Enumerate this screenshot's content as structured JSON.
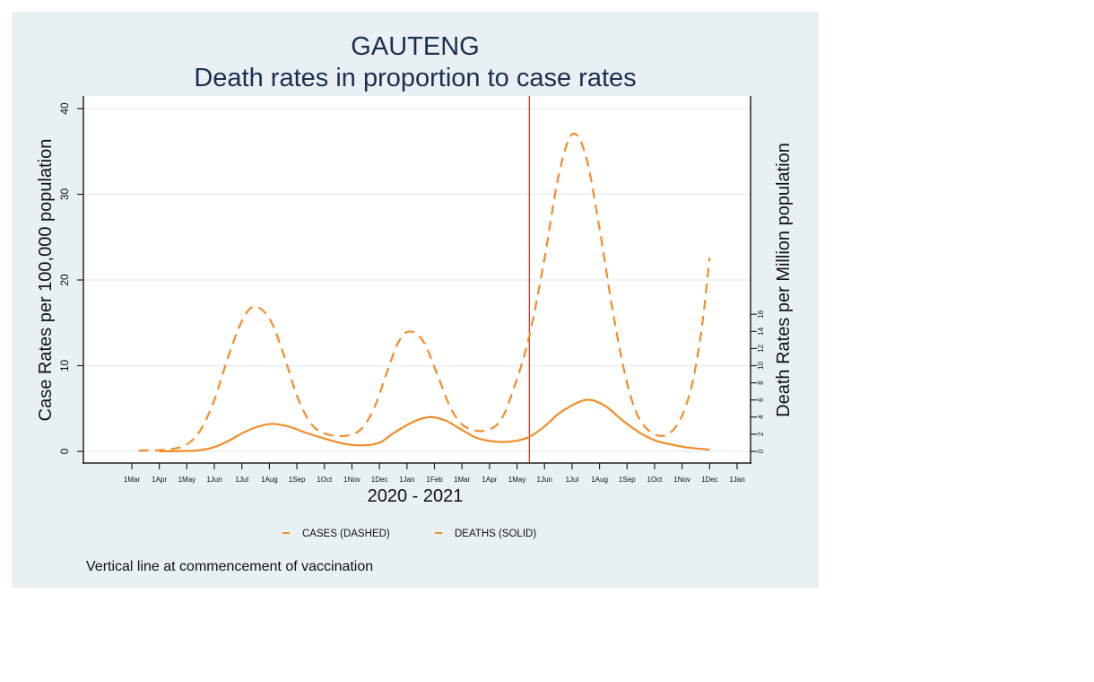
{
  "chart_data": {
    "type": "line",
    "title": "GAUTENG",
    "subtitle": "Death rates in proportion to case rates",
    "xlabel": "2020 - 2021",
    "ylabel": "Case Rates per 100,000 population",
    "ylabel_right": "Death Rates per Million population",
    "x_unit": "months since 1 Mar 2020",
    "xlim": [
      0,
      22
    ],
    "x_ticks": [
      {
        "x": 0,
        "label": "1Mar"
      },
      {
        "x": 1,
        "label": "1Apr"
      },
      {
        "x": 2,
        "label": "1May"
      },
      {
        "x": 3,
        "label": "1Jun"
      },
      {
        "x": 4,
        "label": "1Jul"
      },
      {
        "x": 5,
        "label": "1Aug"
      },
      {
        "x": 6,
        "label": "1Sep"
      },
      {
        "x": 7,
        "label": "1Oct"
      },
      {
        "x": 8,
        "label": "1Nov"
      },
      {
        "x": 9,
        "label": "1Dec"
      },
      {
        "x": 10,
        "label": "1Jan"
      },
      {
        "x": 11,
        "label": "1Feb"
      },
      {
        "x": 12,
        "label": "1Mar"
      },
      {
        "x": 13,
        "label": "1Apr"
      },
      {
        "x": 14,
        "label": "1May"
      },
      {
        "x": 15,
        "label": "1Jun"
      },
      {
        "x": 16,
        "label": "1Jul"
      },
      {
        "x": 17,
        "label": "1Aug"
      },
      {
        "x": 18,
        "label": "1Sep"
      },
      {
        "x": 19,
        "label": "1Oct"
      },
      {
        "x": 20,
        "label": "1Nov"
      },
      {
        "x": 21,
        "label": "1Dec"
      },
      {
        "x": 22,
        "label": "1Jan"
      }
    ],
    "ylim": [
      0,
      40
    ],
    "y_ticks": [
      0,
      10,
      20,
      30,
      40
    ],
    "ylim_right": [
      0,
      40
    ],
    "y_ticks_right": [
      0,
      2,
      4,
      6,
      8,
      10,
      12,
      14,
      16
    ],
    "grid": true,
    "vline": {
      "x": 14.45,
      "color": "#e8332a",
      "label": "commencement of vaccination"
    },
    "series": [
      {
        "name": "CASES (DASHED)",
        "axis": "left",
        "style": "dashed",
        "color": "#f28c28",
        "points": [
          [
            0.25,
            0.1
          ],
          [
            1.0,
            0.15
          ],
          [
            1.5,
            0.3
          ],
          [
            2.0,
            0.8
          ],
          [
            2.5,
            2.5
          ],
          [
            3.0,
            6.0
          ],
          [
            3.5,
            11.0
          ],
          [
            4.0,
            15.2
          ],
          [
            4.45,
            16.9
          ],
          [
            5.0,
            15.5
          ],
          [
            5.5,
            11.5
          ],
          [
            6.0,
            6.5
          ],
          [
            6.5,
            3.3
          ],
          [
            7.0,
            2.1
          ],
          [
            7.7,
            1.8
          ],
          [
            8.3,
            2.5
          ],
          [
            8.8,
            5.0
          ],
          [
            9.3,
            9.5
          ],
          [
            9.7,
            12.8
          ],
          [
            10.1,
            14.0
          ],
          [
            10.6,
            12.8
          ],
          [
            11.1,
            9.0
          ],
          [
            11.6,
            5.0
          ],
          [
            12.1,
            2.9
          ],
          [
            12.8,
            2.4
          ],
          [
            13.4,
            3.6
          ],
          [
            13.9,
            7.5
          ],
          [
            14.45,
            13.5
          ],
          [
            15.0,
            22.5
          ],
          [
            15.5,
            32.0
          ],
          [
            16.0,
            37.0
          ],
          [
            16.5,
            34.5
          ],
          [
            17.0,
            26.0
          ],
          [
            17.5,
            16.0
          ],
          [
            18.0,
            8.0
          ],
          [
            18.5,
            3.5
          ],
          [
            19.2,
            1.8
          ],
          [
            19.8,
            3.0
          ],
          [
            20.3,
            7.0
          ],
          [
            20.7,
            14.0
          ],
          [
            21.0,
            22.6
          ]
        ]
      },
      {
        "name": "DEATHS (SOLID)",
        "axis": "right",
        "style": "solid",
        "color": "#f28c28",
        "points": [
          [
            1.0,
            0.0
          ],
          [
            2.0,
            0.05
          ],
          [
            2.5,
            0.15
          ],
          [
            3.0,
            0.5
          ],
          [
            3.5,
            1.2
          ],
          [
            4.0,
            2.1
          ],
          [
            4.5,
            2.8
          ],
          [
            5.1,
            3.2
          ],
          [
            5.7,
            2.9
          ],
          [
            6.3,
            2.2
          ],
          [
            7.0,
            1.5
          ],
          [
            7.7,
            0.9
          ],
          [
            8.4,
            0.7
          ],
          [
            9.0,
            1.0
          ],
          [
            9.5,
            2.1
          ],
          [
            10.2,
            3.4
          ],
          [
            10.8,
            4.0
          ],
          [
            11.4,
            3.6
          ],
          [
            12.0,
            2.5
          ],
          [
            12.6,
            1.5
          ],
          [
            13.4,
            1.1
          ],
          [
            14.0,
            1.25
          ],
          [
            14.45,
            1.7
          ],
          [
            15.0,
            2.9
          ],
          [
            15.6,
            4.6
          ],
          [
            16.5,
            6.0
          ],
          [
            17.2,
            5.3
          ],
          [
            17.8,
            3.7
          ],
          [
            18.4,
            2.3
          ],
          [
            19.0,
            1.3
          ],
          [
            19.6,
            0.8
          ],
          [
            20.2,
            0.45
          ],
          [
            21.0,
            0.2
          ]
        ]
      }
    ],
    "legend": {
      "placement": "bottom",
      "entries": [
        "CASES (DASHED)",
        "DEATHS (SOLID)"
      ]
    },
    "note": "Vertical line at commencement of vaccination"
  }
}
